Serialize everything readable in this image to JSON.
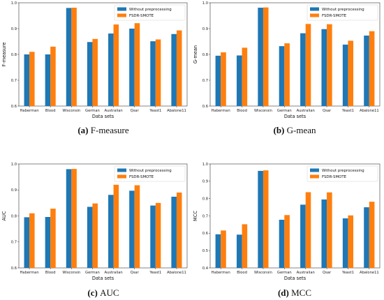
{
  "colors": {
    "without": "#1f77b4",
    "fsdr": "#ff7f0e"
  },
  "chart_data": [
    {
      "type": "bar",
      "caption_letter": "(a)",
      "caption_text": "F-measure",
      "categories": [
        "Haberman",
        "Blood",
        "Wisconsin",
        "German",
        "Australian",
        "Qsar",
        "Yeast1",
        "Abalone11"
      ],
      "series": [
        {
          "name": "Without preprocessing",
          "values": [
            0.8,
            0.8,
            0.98,
            0.848,
            0.881,
            0.9,
            0.851,
            0.879
          ]
        },
        {
          "name": "FSDR-SMOTE",
          "values": [
            0.81,
            0.83,
            0.981,
            0.86,
            0.916,
            0.921,
            0.858,
            0.893
          ]
        }
      ],
      "xlabel": "Data sets",
      "ylabel": "F-measure",
      "ylim": [
        0.6,
        1.0
      ],
      "yticks": [
        "0.6",
        "0.7",
        "0.8",
        "0.9",
        "1.0"
      ],
      "legend": "top-right"
    },
    {
      "type": "bar",
      "caption_letter": "(b)",
      "caption_text": "G-mean",
      "categories": [
        "Haberman",
        "Blood",
        "Wisconsin",
        "German",
        "Australian",
        "Qsar",
        "Yeast1",
        "Abalone11"
      ],
      "series": [
        {
          "name": "Without preprocessing",
          "values": [
            0.795,
            0.796,
            0.981,
            0.832,
            0.882,
            0.898,
            0.838,
            0.873
          ]
        },
        {
          "name": "FSDR-SMOTE",
          "values": [
            0.808,
            0.826,
            0.982,
            0.843,
            0.918,
            0.917,
            0.853,
            0.89
          ]
        }
      ],
      "xlabel": "Data sets",
      "ylabel": "G-mean",
      "ylim": [
        0.6,
        1.0
      ],
      "yticks": [
        "0.6",
        "0.7",
        "0.8",
        "0.9",
        "1.0"
      ],
      "legend": "top-right"
    },
    {
      "type": "bar",
      "caption_letter": "(c)",
      "caption_text": "AUC",
      "categories": [
        "Haberman",
        "Blood",
        "Wisconsin",
        "German",
        "Australian",
        "Qsar",
        "Yeast1",
        "Abalone11"
      ],
      "series": [
        {
          "name": "Without preprocessing",
          "values": [
            0.795,
            0.796,
            0.98,
            0.835,
            0.881,
            0.897,
            0.84,
            0.874
          ]
        },
        {
          "name": "FSDR-SMOTE",
          "values": [
            0.81,
            0.828,
            0.981,
            0.848,
            0.92,
            0.918,
            0.85,
            0.89
          ]
        }
      ],
      "xlabel": "Data sets",
      "ylabel": "AUC",
      "ylim": [
        0.6,
        1.0
      ],
      "yticks": [
        "0.6",
        "0.7",
        "0.8",
        "0.9",
        "1.0"
      ],
      "legend": "top-right"
    },
    {
      "type": "bar",
      "caption_letter": "(d)",
      "caption_text": "MCC",
      "categories": [
        "Haberman",
        "Blood",
        "Wisconsin",
        "German",
        "Australian",
        "Qsar",
        "Yeast1",
        "Abalone11"
      ],
      "series": [
        {
          "name": "Without preprocessing",
          "values": [
            0.594,
            0.592,
            0.96,
            0.678,
            0.765,
            0.795,
            0.686,
            0.75
          ]
        },
        {
          "name": "FSDR-SMOTE",
          "values": [
            0.616,
            0.652,
            0.963,
            0.705,
            0.837,
            0.836,
            0.703,
            0.782
          ]
        }
      ],
      "xlabel": "Data sets",
      "ylabel": "MCC",
      "ylim": [
        0.4,
        1.0
      ],
      "yticks": [
        "0.4",
        "0.5",
        "0.6",
        "0.7",
        "0.8",
        "0.9",
        "1.0"
      ],
      "legend": "top-right"
    }
  ]
}
